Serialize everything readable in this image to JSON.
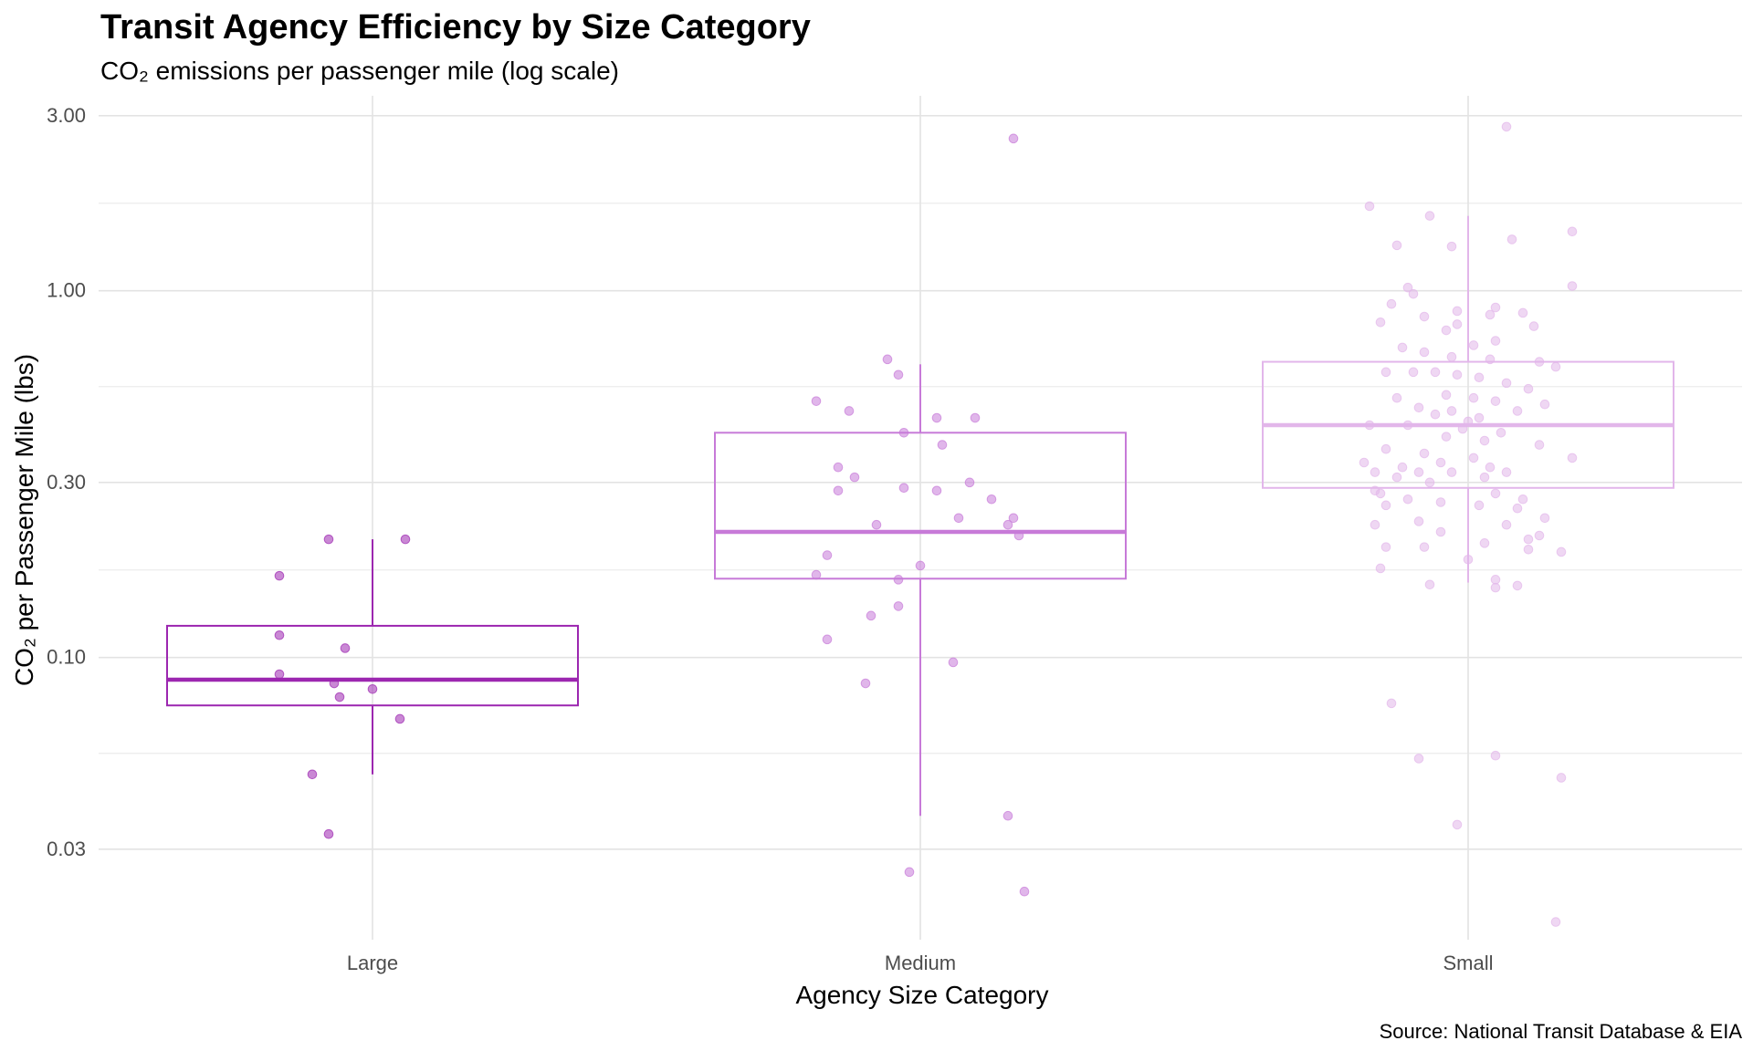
{
  "chart_data": {
    "type": "box",
    "title": "Transit Agency Efficiency by Size Category",
    "subtitle": "CO₂ emissions per passenger mile (log scale)",
    "xlabel": "Agency Size Category",
    "ylabel": "CO₂ per Passenger Mile (lbs)",
    "caption": "Source: National Transit Database & EIA",
    "y_scale": "log10",
    "ylim": [
      0.017,
      3.4
    ],
    "y_ticks": [
      0.03,
      0.1,
      0.3,
      1.0,
      3.0
    ],
    "y_tick_labels": [
      "0.03",
      "0.10",
      "0.30",
      "1.00",
      "3.00"
    ],
    "grid": true,
    "legend": "none",
    "categories": [
      "Large",
      "Medium",
      "Small"
    ],
    "colors": [
      "#9c27b0",
      "#c77ad8",
      "#e2b6ea"
    ],
    "boxes": [
      {
        "category": "Large",
        "q1": 0.074,
        "median": 0.087,
        "q3": 0.122,
        "whisker_low": 0.048,
        "whisker_high": 0.21
      },
      {
        "category": "Medium",
        "q1": 0.164,
        "median": 0.22,
        "q3": 0.41,
        "whisker_low": 0.037,
        "whisker_high": 0.63
      },
      {
        "category": "Small",
        "q1": 0.29,
        "median": 0.43,
        "q3": 0.64,
        "whisker_low": 0.16,
        "whisker_high": 1.6
      }
    ],
    "points": [
      {
        "category": "Large",
        "x_offset": -0.08,
        "y": 0.21
      },
      {
        "category": "Large",
        "x_offset": 0.06,
        "y": 0.21
      },
      {
        "category": "Large",
        "x_offset": -0.17,
        "y": 0.167
      },
      {
        "category": "Large",
        "x_offset": -0.17,
        "y": 0.115
      },
      {
        "category": "Large",
        "x_offset": -0.05,
        "y": 0.106
      },
      {
        "category": "Large",
        "x_offset": -0.17,
        "y": 0.09
      },
      {
        "category": "Large",
        "x_offset": -0.07,
        "y": 0.085
      },
      {
        "category": "Large",
        "x_offset": 0.0,
        "y": 0.082
      },
      {
        "category": "Large",
        "x_offset": -0.06,
        "y": 0.078
      },
      {
        "category": "Large",
        "x_offset": 0.05,
        "y": 0.068
      },
      {
        "category": "Large",
        "x_offset": -0.11,
        "y": 0.048
      },
      {
        "category": "Large",
        "x_offset": -0.08,
        "y": 0.033
      },
      {
        "category": "Medium",
        "x_offset": 0.17,
        "y": 2.6
      },
      {
        "category": "Medium",
        "x_offset": -0.06,
        "y": 0.65
      },
      {
        "category": "Medium",
        "x_offset": -0.04,
        "y": 0.59
      },
      {
        "category": "Medium",
        "x_offset": -0.19,
        "y": 0.5
      },
      {
        "category": "Medium",
        "x_offset": -0.13,
        "y": 0.47
      },
      {
        "category": "Medium",
        "x_offset": 0.03,
        "y": 0.45
      },
      {
        "category": "Medium",
        "x_offset": 0.1,
        "y": 0.45
      },
      {
        "category": "Medium",
        "x_offset": -0.03,
        "y": 0.41
      },
      {
        "category": "Medium",
        "x_offset": 0.04,
        "y": 0.38
      },
      {
        "category": "Medium",
        "x_offset": -0.15,
        "y": 0.33
      },
      {
        "category": "Medium",
        "x_offset": -0.12,
        "y": 0.31
      },
      {
        "category": "Medium",
        "x_offset": 0.09,
        "y": 0.3
      },
      {
        "category": "Medium",
        "x_offset": -0.03,
        "y": 0.29
      },
      {
        "category": "Medium",
        "x_offset": 0.03,
        "y": 0.285
      },
      {
        "category": "Medium",
        "x_offset": -0.15,
        "y": 0.285
      },
      {
        "category": "Medium",
        "x_offset": 0.13,
        "y": 0.27
      },
      {
        "category": "Medium",
        "x_offset": 0.07,
        "y": 0.24
      },
      {
        "category": "Medium",
        "x_offset": 0.17,
        "y": 0.24
      },
      {
        "category": "Medium",
        "x_offset": -0.08,
        "y": 0.23
      },
      {
        "category": "Medium",
        "x_offset": 0.16,
        "y": 0.23
      },
      {
        "category": "Medium",
        "x_offset": 0.18,
        "y": 0.215
      },
      {
        "category": "Medium",
        "x_offset": -0.17,
        "y": 0.19
      },
      {
        "category": "Medium",
        "x_offset": 0.0,
        "y": 0.178
      },
      {
        "category": "Medium",
        "x_offset": -0.19,
        "y": 0.168
      },
      {
        "category": "Medium",
        "x_offset": -0.04,
        "y": 0.163
      },
      {
        "category": "Medium",
        "x_offset": -0.09,
        "y": 0.13
      },
      {
        "category": "Medium",
        "x_offset": -0.04,
        "y": 0.138
      },
      {
        "category": "Medium",
        "x_offset": -0.17,
        "y": 0.112
      },
      {
        "category": "Medium",
        "x_offset": 0.06,
        "y": 0.097
      },
      {
        "category": "Medium",
        "x_offset": -0.1,
        "y": 0.085
      },
      {
        "category": "Medium",
        "x_offset": 0.16,
        "y": 0.037
      },
      {
        "category": "Medium",
        "x_offset": -0.02,
        "y": 0.026
      },
      {
        "category": "Medium",
        "x_offset": 0.19,
        "y": 0.023
      },
      {
        "category": "Small",
        "x_offset": 0.07,
        "y": 2.8
      },
      {
        "category": "Small",
        "x_offset": -0.18,
        "y": 1.7
      },
      {
        "category": "Small",
        "x_offset": -0.07,
        "y": 1.6
      },
      {
        "category": "Small",
        "x_offset": 0.19,
        "y": 1.45
      },
      {
        "category": "Small",
        "x_offset": 0.08,
        "y": 1.38
      },
      {
        "category": "Small",
        "x_offset": -0.13,
        "y": 1.33
      },
      {
        "category": "Small",
        "x_offset": -0.03,
        "y": 1.32
      },
      {
        "category": "Small",
        "x_offset": -0.11,
        "y": 1.02
      },
      {
        "category": "Small",
        "x_offset": -0.1,
        "y": 0.98
      },
      {
        "category": "Small",
        "x_offset": 0.19,
        "y": 1.03
      },
      {
        "category": "Small",
        "x_offset": -0.14,
        "y": 0.92
      },
      {
        "category": "Small",
        "x_offset": 0.05,
        "y": 0.9
      },
      {
        "category": "Small",
        "x_offset": -0.02,
        "y": 0.88
      },
      {
        "category": "Small",
        "x_offset": 0.1,
        "y": 0.87
      },
      {
        "category": "Small",
        "x_offset": 0.04,
        "y": 0.86
      },
      {
        "category": "Small",
        "x_offset": -0.08,
        "y": 0.85
      },
      {
        "category": "Small",
        "x_offset": -0.16,
        "y": 0.82
      },
      {
        "category": "Small",
        "x_offset": -0.02,
        "y": 0.81
      },
      {
        "category": "Small",
        "x_offset": 0.12,
        "y": 0.8
      },
      {
        "category": "Small",
        "x_offset": -0.04,
        "y": 0.78
      },
      {
        "category": "Small",
        "x_offset": 0.05,
        "y": 0.73
      },
      {
        "category": "Small",
        "x_offset": 0.01,
        "y": 0.71
      },
      {
        "category": "Small",
        "x_offset": -0.12,
        "y": 0.7
      },
      {
        "category": "Small",
        "x_offset": -0.08,
        "y": 0.68
      },
      {
        "category": "Small",
        "x_offset": -0.03,
        "y": 0.66
      },
      {
        "category": "Small",
        "x_offset": 0.04,
        "y": 0.65
      },
      {
        "category": "Small",
        "x_offset": 0.13,
        "y": 0.64
      },
      {
        "category": "Small",
        "x_offset": 0.16,
        "y": 0.62
      },
      {
        "category": "Small",
        "x_offset": -0.15,
        "y": 0.6
      },
      {
        "category": "Small",
        "x_offset": -0.1,
        "y": 0.6
      },
      {
        "category": "Small",
        "x_offset": -0.06,
        "y": 0.6
      },
      {
        "category": "Small",
        "x_offset": -0.02,
        "y": 0.59
      },
      {
        "category": "Small",
        "x_offset": 0.02,
        "y": 0.58
      },
      {
        "category": "Small",
        "x_offset": 0.07,
        "y": 0.56
      },
      {
        "category": "Small",
        "x_offset": 0.11,
        "y": 0.54
      },
      {
        "category": "Small",
        "x_offset": -0.13,
        "y": 0.51
      },
      {
        "category": "Small",
        "x_offset": -0.04,
        "y": 0.52
      },
      {
        "category": "Small",
        "x_offset": 0.01,
        "y": 0.51
      },
      {
        "category": "Small",
        "x_offset": 0.05,
        "y": 0.5
      },
      {
        "category": "Small",
        "x_offset": 0.14,
        "y": 0.49
      },
      {
        "category": "Small",
        "x_offset": -0.09,
        "y": 0.48
      },
      {
        "category": "Small",
        "x_offset": -0.03,
        "y": 0.47
      },
      {
        "category": "Small",
        "x_offset": 0.09,
        "y": 0.47
      },
      {
        "category": "Small",
        "x_offset": -0.06,
        "y": 0.46
      },
      {
        "category": "Small",
        "x_offset": 0.02,
        "y": 0.45
      },
      {
        "category": "Small",
        "x_offset": 0.0,
        "y": 0.44
      },
      {
        "category": "Small",
        "x_offset": -0.18,
        "y": 0.43
      },
      {
        "category": "Small",
        "x_offset": -0.11,
        "y": 0.43
      },
      {
        "category": "Small",
        "x_offset": -0.01,
        "y": 0.42
      },
      {
        "category": "Small",
        "x_offset": 0.06,
        "y": 0.41
      },
      {
        "category": "Small",
        "x_offset": -0.04,
        "y": 0.4
      },
      {
        "category": "Small",
        "x_offset": 0.03,
        "y": 0.39
      },
      {
        "category": "Small",
        "x_offset": 0.13,
        "y": 0.38
      },
      {
        "category": "Small",
        "x_offset": -0.15,
        "y": 0.37
      },
      {
        "category": "Small",
        "x_offset": -0.08,
        "y": 0.36
      },
      {
        "category": "Small",
        "x_offset": 0.01,
        "y": 0.35
      },
      {
        "category": "Small",
        "x_offset": 0.19,
        "y": 0.35
      },
      {
        "category": "Small",
        "x_offset": -0.19,
        "y": 0.34
      },
      {
        "category": "Small",
        "x_offset": -0.12,
        "y": 0.33
      },
      {
        "category": "Small",
        "x_offset": -0.05,
        "y": 0.34
      },
      {
        "category": "Small",
        "x_offset": 0.04,
        "y": 0.33
      },
      {
        "category": "Small",
        "x_offset": -0.17,
        "y": 0.32
      },
      {
        "category": "Small",
        "x_offset": -0.09,
        "y": 0.32
      },
      {
        "category": "Small",
        "x_offset": -0.03,
        "y": 0.32
      },
      {
        "category": "Small",
        "x_offset": 0.07,
        "y": 0.32
      },
      {
        "category": "Small",
        "x_offset": -0.13,
        "y": 0.31
      },
      {
        "category": "Small",
        "x_offset": 0.03,
        "y": 0.31
      },
      {
        "category": "Small",
        "x_offset": -0.07,
        "y": 0.3
      },
      {
        "category": "Small",
        "x_offset": -0.17,
        "y": 0.285
      },
      {
        "category": "Small",
        "x_offset": -0.16,
        "y": 0.28
      },
      {
        "category": "Small",
        "x_offset": 0.05,
        "y": 0.28
      },
      {
        "category": "Small",
        "x_offset": -0.11,
        "y": 0.27
      },
      {
        "category": "Small",
        "x_offset": 0.1,
        "y": 0.27
      },
      {
        "category": "Small",
        "x_offset": -0.05,
        "y": 0.265
      },
      {
        "category": "Small",
        "x_offset": 0.02,
        "y": 0.26
      },
      {
        "category": "Small",
        "x_offset": -0.15,
        "y": 0.26
      },
      {
        "category": "Small",
        "x_offset": 0.09,
        "y": 0.255
      },
      {
        "category": "Small",
        "x_offset": 0.14,
        "y": 0.24
      },
      {
        "category": "Small",
        "x_offset": -0.09,
        "y": 0.235
      },
      {
        "category": "Small",
        "x_offset": -0.17,
        "y": 0.23
      },
      {
        "category": "Small",
        "x_offset": 0.07,
        "y": 0.23
      },
      {
        "category": "Small",
        "x_offset": -0.05,
        "y": 0.22
      },
      {
        "category": "Small",
        "x_offset": 0.13,
        "y": 0.215
      },
      {
        "category": "Small",
        "x_offset": 0.11,
        "y": 0.21
      },
      {
        "category": "Small",
        "x_offset": 0.03,
        "y": 0.205
      },
      {
        "category": "Small",
        "x_offset": -0.15,
        "y": 0.2
      },
      {
        "category": "Small",
        "x_offset": -0.08,
        "y": 0.2
      },
      {
        "category": "Small",
        "x_offset": 0.11,
        "y": 0.197
      },
      {
        "category": "Small",
        "x_offset": 0.17,
        "y": 0.194
      },
      {
        "category": "Small",
        "x_offset": 0.0,
        "y": 0.185
      },
      {
        "category": "Small",
        "x_offset": -0.16,
        "y": 0.175
      },
      {
        "category": "Small",
        "x_offset": 0.05,
        "y": 0.163
      },
      {
        "category": "Small",
        "x_offset": -0.07,
        "y": 0.158
      },
      {
        "category": "Small",
        "x_offset": 0.09,
        "y": 0.157
      },
      {
        "category": "Small",
        "x_offset": 0.05,
        "y": 0.155
      },
      {
        "category": "Small",
        "x_offset": -0.14,
        "y": 0.075
      },
      {
        "category": "Small",
        "x_offset": -0.09,
        "y": 0.053
      },
      {
        "category": "Small",
        "x_offset": 0.05,
        "y": 0.054
      },
      {
        "category": "Small",
        "x_offset": 0.17,
        "y": 0.047
      },
      {
        "category": "Small",
        "x_offset": -0.02,
        "y": 0.035
      },
      {
        "category": "Small",
        "x_offset": 0.16,
        "y": 0.019
      }
    ]
  }
}
